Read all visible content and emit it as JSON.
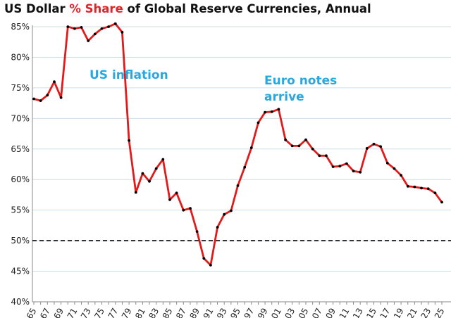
{
  "chart_data": {
    "type": "line",
    "title_parts": [
      "US Dollar ",
      "% Share",
      " of Global Reserve Currencies, Annual"
    ],
    "title_highlight_color": "#e0242a",
    "xlabel": "",
    "ylabel": "",
    "ylim": [
      40,
      85
    ],
    "yticks": [
      40,
      45,
      50,
      55,
      60,
      65,
      70,
      75,
      80,
      85
    ],
    "ytick_suffix": "%",
    "grid": true,
    "legend": "none",
    "x": [
      1965,
      1966,
      1967,
      1968,
      1969,
      1970,
      1971,
      1972,
      1973,
      1974,
      1975,
      1976,
      1977,
      1978,
      1979,
      1980,
      1981,
      1982,
      1983,
      1984,
      1985,
      1986,
      1987,
      1988,
      1989,
      1990,
      1991,
      1992,
      1993,
      1994,
      1995,
      1996,
      1997,
      1998,
      1999,
      2000,
      2001,
      2002,
      2003,
      2004,
      2005,
      2006,
      2007,
      2008,
      2009,
      2010,
      2011,
      2012,
      2013,
      2014,
      2015,
      2016,
      2017,
      2018,
      2019,
      2020,
      2021,
      2022,
      2023,
      2024,
      2025
    ],
    "xtick_labels": [
      "65",
      "67",
      "69",
      "71",
      "73",
      "75",
      "77",
      "79",
      "81",
      "83",
      "85",
      "87",
      "89",
      "91",
      "93",
      "95",
      "97",
      "99",
      "01",
      "03",
      "05",
      "07",
      "09",
      "11",
      "13",
      "15",
      "17",
      "19",
      "21",
      "23",
      "25"
    ],
    "series": [
      {
        "color": "#e01b1b",
        "marker_color": "#000000",
        "values": [
          73.2,
          72.9,
          73.8,
          76.0,
          73.4,
          85.0,
          84.7,
          84.9,
          82.7,
          83.8,
          84.7,
          85.0,
          85.5,
          84.1,
          66.4,
          57.9,
          61.0,
          59.7,
          61.8,
          63.3,
          56.7,
          57.8,
          55.0,
          55.3,
          51.5,
          47.1,
          46.0,
          52.2,
          54.3,
          54.9,
          59.0,
          62.0,
          65.2,
          69.3,
          71.0,
          71.1,
          71.5,
          66.5,
          65.5,
          65.5,
          66.5,
          65.0,
          63.9,
          63.9,
          62.1,
          62.2,
          62.6,
          61.4,
          61.2,
          65.1,
          65.8,
          65.4,
          62.7,
          61.8,
          60.7,
          58.9,
          58.8,
          58.6,
          58.5,
          57.8,
          56.3
        ]
      }
    ],
    "reference_line": {
      "y": 50,
      "style": "dashed",
      "color": "#000000"
    },
    "annotations": [
      {
        "lines": [
          "US inflation"
        ],
        "color": "#29a8df"
      },
      {
        "lines": [
          "Euro notes",
          "arrive"
        ],
        "color": "#29a8df"
      }
    ]
  }
}
